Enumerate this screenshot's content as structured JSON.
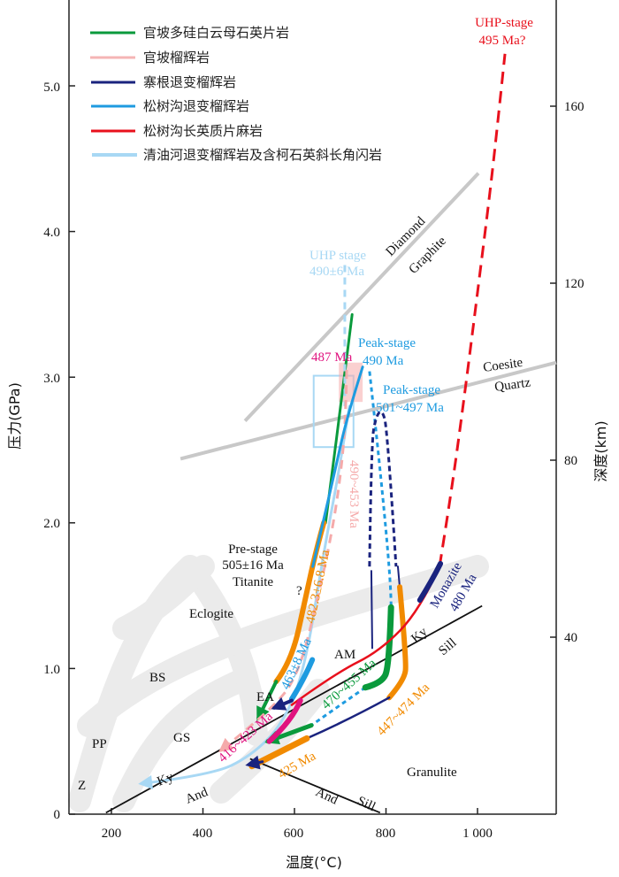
{
  "chart_data": {
    "type": "line",
    "title": "",
    "xlabel": "温度(°C)",
    "ylabel": "压力(GPa)",
    "y2label": "深度(km)",
    "xlim": [
      107,
      1172
    ],
    "ylim": [
      0,
      5.59
    ],
    "y2lim": [
      0,
      184
    ],
    "grid": false,
    "legend_position": "top-left",
    "x_ticks": [
      "200",
      "400",
      "600",
      "800",
      "1 000"
    ],
    "x_tick_values": [
      200,
      400,
      600,
      800,
      1000
    ],
    "y_ticks": [
      "0",
      "1.0",
      "2.0",
      "3.0",
      "4.0",
      "5.0"
    ],
    "y_tick_values": [
      0,
      1,
      2,
      3,
      4,
      5
    ],
    "y2_ticks": [
      "40",
      "80",
      "120",
      "160"
    ],
    "y2_tick_values": [
      40,
      80,
      120,
      160
    ],
    "legend": [
      {
        "label": "官坡多硅白云母石英片岩",
        "color": "#0a9a3c"
      },
      {
        "label": "官坡榴辉岩",
        "color": "#f5b5b5"
      },
      {
        "label": "寨根退变榴辉岩",
        "color": "#1a237e"
      },
      {
        "label": "松树沟退变榴辉岩",
        "color": "#1e9be0"
      },
      {
        "label": "松树沟长英质片麻岩",
        "color": "#e8101c"
      },
      {
        "label": "清油河退变榴辉岩及含柯石英斜长角闪岩",
        "color": "#a8d8f4"
      }
    ],
    "colors": {
      "green": "#0a9a3c",
      "pink": "#f5aaaa",
      "navy": "#1a237e",
      "blue": "#1e9be0",
      "red": "#e8101c",
      "lightblue": "#a8d8f4",
      "orange": "#f18a00",
      "magenta": "#e0137f",
      "gray": "#c8c8c8"
    },
    "boundaries": [
      {
        "name": "diamond-graphite",
        "points": [
          [
            492,
            2.7
          ],
          [
            1002,
            4.4
          ]
        ]
      },
      {
        "name": "coesite-quartz",
        "points": [
          [
            351,
            2.44
          ],
          [
            1172,
            3.1
          ]
        ]
      }
    ],
    "reactions": [
      {
        "name": "ky-sill-and-ky",
        "points": [
          [
            188,
            0.01
          ],
          [
            1010,
            1.43
          ]
        ]
      },
      {
        "name": "and-sill",
        "points": [
          [
            503,
            0.38
          ],
          [
            787,
            0.01
          ]
        ]
      }
    ],
    "series": [
      {
        "name": "green-upper",
        "color": "green",
        "width": 3,
        "dash": "",
        "points": [
          [
            726,
            3.43
          ],
          [
            702,
            2.83
          ],
          [
            681,
            2.31
          ],
          [
            668,
            2.0
          ]
        ]
      },
      {
        "name": "orange-upper",
        "color": "orange",
        "width": 6,
        "dash": "",
        "points": [
          [
            664,
            2.0
          ],
          [
            648,
            1.82
          ],
          [
            625,
            1.5
          ],
          [
            594,
            1.05
          ],
          [
            560,
            0.91
          ]
        ]
      },
      {
        "name": "green-arrow-upper",
        "color": "green",
        "width": 4,
        "dash": "",
        "arrow": true,
        "points": [
          [
            560,
            0.91
          ],
          [
            521,
            0.66
          ]
        ]
      },
      {
        "name": "lightblue-dashed-uhp",
        "color": "lightblue",
        "width": 3,
        "dash": "8 6",
        "points": [
          [
            710,
            3.77
          ],
          [
            710,
            2.8
          ]
        ]
      },
      {
        "name": "lightblue-path",
        "color": "lightblue",
        "width": 3,
        "dash": "",
        "arrow": true,
        "points": [
          [
            720,
            2.8
          ],
          [
            700,
            2.4
          ],
          [
            664,
            1.8
          ],
          [
            623,
            1.0
          ],
          [
            575,
            0.62
          ],
          [
            505,
            0.4
          ],
          [
            420,
            0.27
          ],
          [
            266,
            0.21
          ]
        ]
      },
      {
        "name": "pink-dashed",
        "color": "pink",
        "width": 3,
        "dash": "10 7",
        "arrow": true,
        "points": [
          [
            714,
            3.05
          ],
          [
            712,
            2.7
          ],
          [
            700,
            2.3
          ],
          [
            680,
            1.9
          ],
          [
            645,
            1.4
          ],
          [
            610,
            0.98
          ],
          [
            560,
            0.74
          ],
          [
            440,
            0.44
          ]
        ]
      },
      {
        "name": "blue-upper",
        "color": "blue",
        "width": 3,
        "dash": "",
        "points": [
          [
            749,
            3.07
          ],
          [
            714,
            2.72
          ],
          [
            688,
            2.35
          ],
          [
            662,
            2.0
          ],
          [
            640,
            1.7
          ]
        ]
      },
      {
        "name": "blue-thick-lower",
        "color": "blue",
        "width": 6,
        "dash": "",
        "points": [
          [
            639,
            1.06
          ],
          [
            620,
            0.92
          ],
          [
            594,
            0.79
          ]
        ]
      },
      {
        "name": "blue-dashed-peak",
        "color": "blue",
        "width": 3,
        "dash": "5 4",
        "points": [
          [
            764,
            3.04
          ],
          [
            811,
            1.7
          ],
          [
            811,
            1.44
          ]
        ]
      },
      {
        "name": "blue-dashed-lower",
        "color": "blue",
        "width": 3,
        "dash": "5 4",
        "points": [
          [
            755,
            0.87
          ],
          [
            637,
            0.61
          ]
        ]
      },
      {
        "name": "green-lower",
        "color": "green",
        "width": 7,
        "dash": "",
        "points": [
          [
            811,
            1.42
          ],
          [
            807,
            1.01
          ],
          [
            790,
            0.9
          ],
          [
            755,
            0.87
          ]
        ]
      },
      {
        "name": "green-arrow-lower",
        "color": "green",
        "width": 5,
        "dash": "",
        "arrow": true,
        "points": [
          [
            637,
            0.61
          ],
          [
            542,
            0.5
          ]
        ]
      },
      {
        "name": "navy-dashed-loop",
        "color": "navy",
        "width": 3,
        "dash": "6 4",
        "points": [
          [
            764,
            1.7
          ],
          [
            768,
            2.55
          ],
          [
            778,
            2.73
          ],
          [
            791,
            2.78
          ],
          [
            803,
            2.65
          ],
          [
            822,
            1.7
          ]
        ]
      },
      {
        "name": "navy-left-branch",
        "color": "navy",
        "width": 2,
        "dash": "",
        "points": [
          [
            768,
            1.67
          ],
          [
            770,
            1.14
          ]
        ]
      },
      {
        "name": "navy-right-branch",
        "color": "navy",
        "width": 2,
        "dash": "",
        "points": [
          [
            826,
            1.7
          ],
          [
            830,
            1.56
          ]
        ]
      },
      {
        "name": "orange-right",
        "color": "orange",
        "width": 6,
        "dash": "",
        "points": [
          [
            830,
            1.56
          ],
          [
            845,
            1.05
          ],
          [
            840,
            0.92
          ],
          [
            807,
            0.8
          ]
        ]
      },
      {
        "name": "navy-lower",
        "color": "navy",
        "width": 2.5,
        "dash": "",
        "points": [
          [
            807,
            0.8
          ],
          [
            720,
            0.65
          ],
          [
            627,
            0.52
          ]
        ]
      },
      {
        "name": "orange-lower",
        "color": "orange",
        "width": 7,
        "dash": "",
        "points": [
          [
            627,
            0.52
          ],
          [
            507,
            0.33
          ]
        ]
      },
      {
        "name": "navy-arrow",
        "color": "navy",
        "width": 3,
        "dash": "",
        "arrow": true,
        "points": [
          [
            530,
            0.36
          ],
          [
            500,
            0.34
          ]
        ]
      },
      {
        "name": "red-solid",
        "color": "red",
        "width": 2.5,
        "dash": "",
        "points": [
          [
            594,
            0.75
          ],
          [
            691,
            0.97
          ],
          [
            787,
            1.12
          ],
          [
            874,
            1.4
          ],
          [
            917,
            1.7
          ]
        ]
      },
      {
        "name": "red-dashed-uhp",
        "color": "red",
        "width": 3,
        "dash": "14 8",
        "points": [
          [
            917,
            1.7
          ],
          [
            942,
            2.19
          ],
          [
            971,
            2.86
          ],
          [
            1000,
            3.58
          ],
          [
            1029,
            4.31
          ],
          [
            1048,
            4.86
          ],
          [
            1060,
            5.22
          ]
        ]
      },
      {
        "name": "navy-monazite",
        "color": "navy",
        "width": 6,
        "dash": "",
        "points": [
          [
            874,
            1.47
          ],
          [
            900,
            1.6
          ],
          [
            919,
            1.72
          ]
        ]
      },
      {
        "name": "magenta-thick",
        "color": "magenta",
        "width": 6,
        "dash": "",
        "points": [
          [
            613,
            0.78
          ],
          [
            594,
            0.64
          ],
          [
            545,
            0.5
          ]
        ]
      },
      {
        "name": "navy-small-arrow",
        "color": "navy",
        "width": 4,
        "dash": "",
        "arrow": true,
        "points": [
          [
            594,
            0.78
          ],
          [
            556,
            0.73
          ]
        ]
      }
    ],
    "boxes": [
      {
        "name": "uhp-box",
        "color": "lightblue",
        "fill": false,
        "t": [
          642,
          729
        ],
        "p": [
          2.52,
          3.01
        ]
      },
      {
        "name": "peak-box",
        "color": "pink",
        "fill": true,
        "t": [
          697,
          749
        ],
        "p": [
          2.83,
          3.1
        ]
      }
    ],
    "annotations": {
      "uhp_stage_red": "UHP-stage",
      "uhp_stage_red_age": "495 Ma?",
      "diamond": "Diamond",
      "graphite": "Graphite",
      "coesite": "Coesite",
      "quartz": "Quartz",
      "uhp_stage_lb": "UHP stage",
      "uhp_stage_lb_age": "490±6 Ma",
      "age_487": "487 Ma",
      "peak_stage_1": "Peak-stage",
      "peak_stage_1_age": "490 Ma",
      "peak_stage_2": "Peak-stage",
      "peak_stage_2_age": "501~497 Ma",
      "age_490_453": "490~453 Ma",
      "age_482": "482.3±6.8 Ma",
      "pre_stage": "Pre-stage",
      "pre_stage_age": "505±16 Ma",
      "titanite": "Titanite",
      "question": "?",
      "eclogite": "Eclogite",
      "bs": "BS",
      "ea": "EA",
      "am": "AM",
      "gs": "GS",
      "pp": "PP",
      "z": "Z",
      "granulite": "Granulite",
      "ky_left": "Ky",
      "and_left": "And",
      "ky_right": "Ky",
      "sill_right": "Sill",
      "monazite": "Monazite",
      "monazite_age": "480 Ma",
      "age_463": "463±8 Ma",
      "age_470_455": "470~455 Ma",
      "age_416_423": "416~423 Ma",
      "age_425": "425 Ma",
      "age_447_474": "447~474 Ma",
      "and_bottom": "And",
      "sill_bottom": "Sill"
    }
  }
}
